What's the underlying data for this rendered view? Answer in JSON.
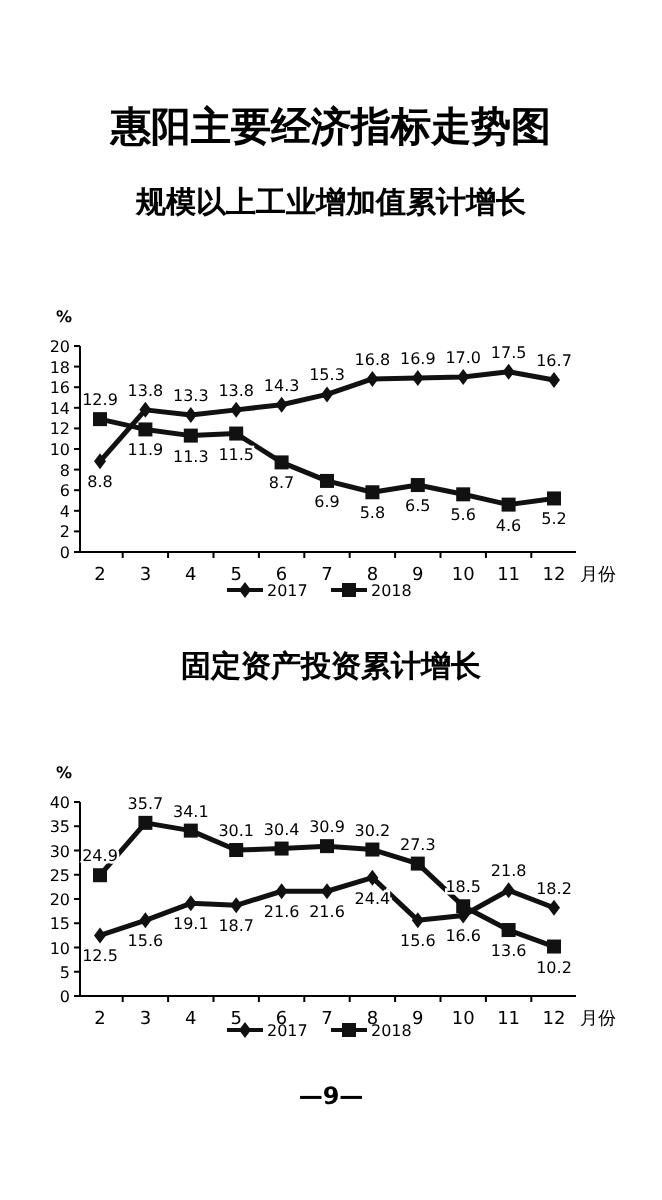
{
  "chart_data": [
    {
      "type": "line",
      "title": "惠阳主要经济指标走势图",
      "subtitle": "规模以上工业增加值累计增长",
      "ylabel": "%",
      "xlabel": "月份",
      "categories": [
        "2",
        "3",
        "4",
        "5",
        "6",
        "7",
        "8",
        "9",
        "10",
        "11",
        "12"
      ],
      "ylim": [
        0,
        20
      ],
      "yticks": [
        0,
        2,
        4,
        6,
        8,
        10,
        12,
        14,
        16,
        18,
        20
      ],
      "grid": false,
      "legend": "bottom",
      "line_style": "solid",
      "series": [
        {
          "name": "2017",
          "color": "#111111",
          "marker": "diamond",
          "values": [
            8.8,
            13.8,
            13.3,
            13.8,
            14.3,
            15.3,
            16.8,
            16.9,
            17.0,
            17.5,
            16.7
          ],
          "value_labels": [
            "8.8",
            "13.8",
            "13.3",
            "13.8",
            "14.3",
            "15.3",
            "16.8",
            "16.9",
            "17.0",
            "17.5",
            "16.7"
          ]
        },
        {
          "name": "2018",
          "color": "#111111",
          "marker": "square",
          "values": [
            12.9,
            11.9,
            11.3,
            11.5,
            8.7,
            6.9,
            5.8,
            6.5,
            5.6,
            4.6,
            5.2
          ],
          "value_labels": [
            "12.9",
            "11.9",
            "11.3",
            "11.5",
            "8.7",
            "6.9",
            "5.8",
            "6.5",
            "5.6",
            "4.6",
            "5.2"
          ]
        }
      ]
    },
    {
      "type": "line",
      "title": "固定资产投资累计增长",
      "ylabel": "%",
      "xlabel": "月份",
      "categories": [
        "2",
        "3",
        "4",
        "5",
        "6",
        "7",
        "8",
        "9",
        "10",
        "11",
        "12"
      ],
      "ylim": [
        0,
        40
      ],
      "yticks": [
        0,
        5,
        10,
        15,
        20,
        25,
        30,
        35,
        40
      ],
      "grid": false,
      "legend": "bottom",
      "line_style": "solid",
      "annotations": [
        "—9—"
      ],
      "series": [
        {
          "name": "2017",
          "color": "#111111",
          "marker": "diamond",
          "values": [
            12.5,
            15.6,
            19.1,
            18.7,
            21.6,
            21.6,
            24.4,
            15.6,
            16.6,
            21.8,
            18.2
          ],
          "value_labels": [
            "12.5",
            "15.6",
            "19.1",
            "18.7",
            "21.6",
            "21.6",
            "24.4",
            "15.6",
            "16.6",
            "21.8",
            "18.2"
          ]
        },
        {
          "name": "2018",
          "color": "#111111",
          "marker": "square",
          "values": [
            24.9,
            35.7,
            34.1,
            30.1,
            30.4,
            30.9,
            30.2,
            27.3,
            18.5,
            13.6,
            10.2
          ],
          "value_labels": [
            "24.9",
            "35.7",
            "34.1",
            "30.1",
            "30.4",
            "30.9",
            "30.2",
            "27.3",
            "18.5",
            "13.6",
            "10.2"
          ]
        }
      ]
    }
  ]
}
